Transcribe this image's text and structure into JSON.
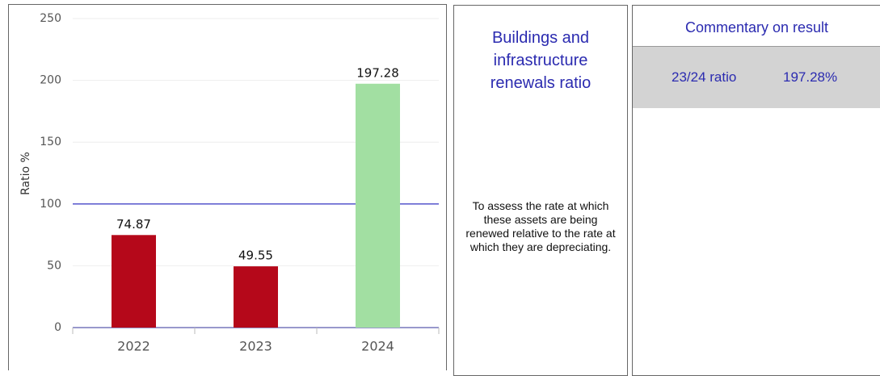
{
  "chart_data": {
    "type": "bar",
    "categories": [
      "2022",
      "2023",
      "2024"
    ],
    "values": [
      74.87,
      49.55,
      197.28
    ],
    "colors": [
      "#b5081a",
      "#b5081a",
      "#a2dfa2"
    ],
    "ylabel": "Ratio %",
    "ylim": [
      0,
      250
    ],
    "yticks": [
      0,
      50,
      100,
      150,
      200,
      250
    ],
    "grid": true,
    "reference_line": 100,
    "reference_color": "#5555cc"
  },
  "title_panel": {
    "title": "Buildings and infrastructure renewals ratio",
    "description": "To assess the rate at which these assets are being renewed relative to the rate at which they are depreciating."
  },
  "commentary": {
    "header": "Commentary on result",
    "label": "23/24 ratio",
    "value": "197.28%"
  }
}
